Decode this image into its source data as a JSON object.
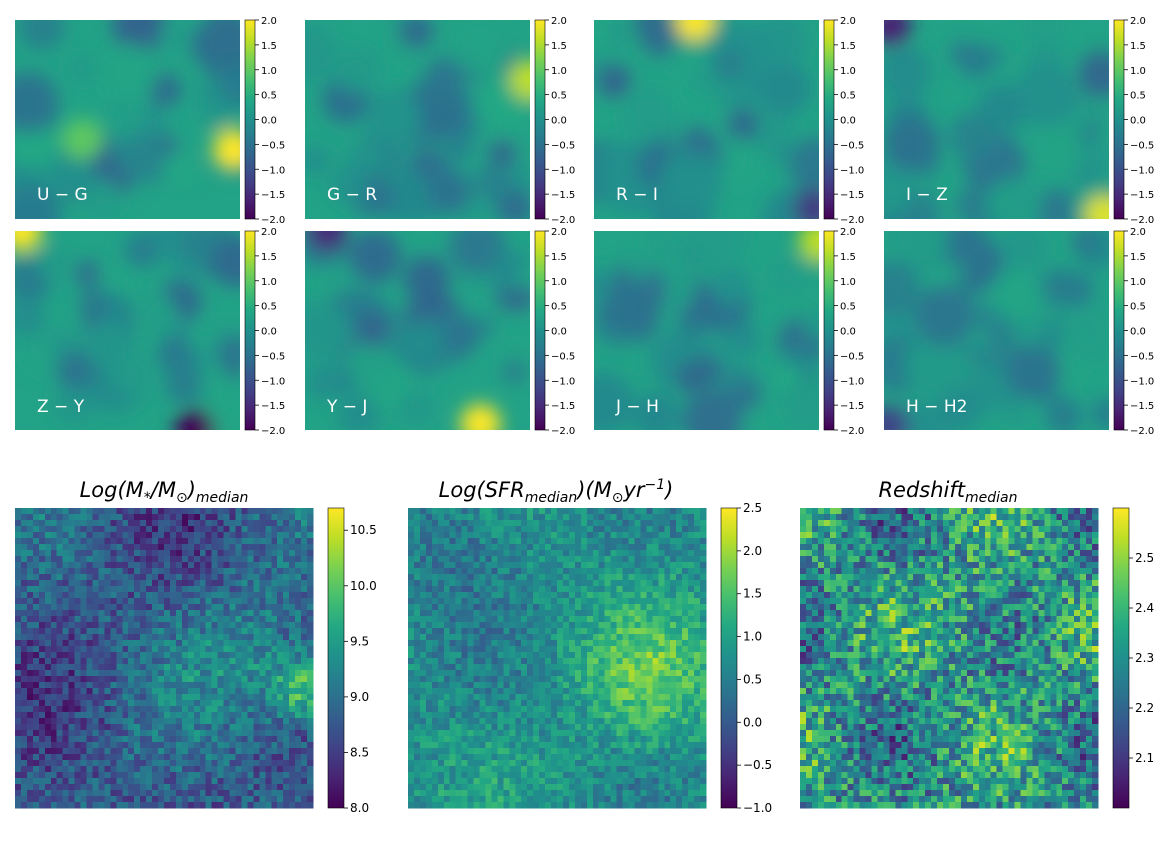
{
  "chart_data": [
    {
      "type": "heatmap",
      "title": "U − G",
      "colormap": "viridis",
      "zlim": [
        -2.0,
        2.0
      ],
      "colorbar_ticks": [
        "2.0",
        "1.5",
        "1.0",
        "0.5",
        "0.0",
        "−0.5",
        "−1.0",
        "−1.5",
        "−2.0"
      ],
      "hotspots": [
        {
          "x": 0.97,
          "y": 0.65,
          "value": 2.0
        },
        {
          "x": 0.3,
          "y": 0.6,
          "value": 1.0
        }
      ]
    },
    {
      "type": "heatmap",
      "title": "G − R",
      "colormap": "viridis",
      "zlim": [
        -2.0,
        2.0
      ],
      "colorbar_ticks": [
        "2.0",
        "1.5",
        "1.0",
        "0.5",
        "0.0",
        "−0.5",
        "−1.0",
        "−1.5",
        "−2.0"
      ],
      "hotspots": [
        {
          "x": 1.0,
          "y": 0.3,
          "value": 1.6
        }
      ]
    },
    {
      "type": "heatmap",
      "title": "R − I",
      "colormap": "viridis",
      "zlim": [
        -2.0,
        2.0
      ],
      "colorbar_ticks": [
        "2.0",
        "1.5",
        "1.0",
        "0.5",
        "0.0",
        "−0.5",
        "−1.0",
        "−1.5",
        "−2.0"
      ],
      "hotspots": [
        {
          "x": 0.45,
          "y": 0.0,
          "value": 2.0
        },
        {
          "x": 0.98,
          "y": 0.95,
          "value": -1.3
        }
      ]
    },
    {
      "type": "heatmap",
      "title": "I − Z",
      "colormap": "viridis",
      "zlim": [
        -2.0,
        2.0
      ],
      "colorbar_ticks": [
        "2.0",
        "1.5",
        "1.0",
        "0.5",
        "0.0",
        "−0.5",
        "−1.0",
        "−1.5",
        "−2.0"
      ],
      "hotspots": [
        {
          "x": 0.03,
          "y": 0.03,
          "value": -1.6
        },
        {
          "x": 0.98,
          "y": 0.98,
          "value": 1.8
        }
      ]
    },
    {
      "type": "heatmap",
      "title": "Z − Y",
      "colormap": "viridis",
      "zlim": [
        -2.0,
        2.0
      ],
      "colorbar_ticks": [
        "2.0",
        "1.5",
        "1.0",
        "0.5",
        "0.0",
        "−0.5",
        "−1.0",
        "−1.5",
        "−2.0"
      ],
      "hotspots": [
        {
          "x": 0.03,
          "y": 0.0,
          "value": 2.0
        },
        {
          "x": 0.8,
          "y": 1.0,
          "value": -2.0
        }
      ]
    },
    {
      "type": "heatmap",
      "title": "Y − J",
      "colormap": "viridis",
      "zlim": [
        -2.0,
        2.0
      ],
      "colorbar_ticks": [
        "2.0",
        "1.5",
        "1.0",
        "0.5",
        "0.0",
        "−0.5",
        "−1.0",
        "−1.5",
        "−2.0"
      ],
      "hotspots": [
        {
          "x": 0.78,
          "y": 0.97,
          "value": 2.0
        },
        {
          "x": 0.1,
          "y": 0.0,
          "value": -1.5
        }
      ]
    },
    {
      "type": "heatmap",
      "title": "J − H",
      "colormap": "viridis",
      "zlim": [
        -2.0,
        2.0
      ],
      "colorbar_ticks": [
        "2.0",
        "1.5",
        "1.0",
        "0.5",
        "0.0",
        "−0.5",
        "−1.0",
        "−1.5",
        "−2.0"
      ],
      "hotspots": [
        {
          "x": 1.0,
          "y": 0.05,
          "value": 1.6
        }
      ]
    },
    {
      "type": "heatmap",
      "title": "H − H2",
      "colormap": "viridis",
      "zlim": [
        -2.0,
        2.0
      ],
      "colorbar_ticks": [
        "2.0",
        "1.5",
        "1.0",
        "0.5",
        "0.0",
        "−0.5",
        "−1.0",
        "−1.5",
        "−2.0"
      ],
      "hotspots": [
        {
          "x": 0.02,
          "y": 0.98,
          "value": -1.2
        }
      ]
    },
    {
      "type": "heatmap",
      "title": "Log(M*/M⊙)median",
      "title_parts": {
        "base": "Log(M",
        "sub1": "*",
        "mid": "/M",
        "sub2": "⊙",
        "close": ")",
        "sub3": "median"
      },
      "colormap": "viridis",
      "zlim": [
        8.0,
        10.7
      ],
      "grid": [
        50,
        50
      ],
      "colorbar_ticks": [
        "10.5",
        "10.0",
        "9.5",
        "9.0",
        "8.5",
        "8.0"
      ],
      "colorbar_tick_values": [
        10.5,
        10.0,
        9.5,
        9.0,
        8.5,
        8.0
      ]
    },
    {
      "type": "heatmap",
      "title": "Log(SFRmedian)(M⊙yr−1)",
      "title_parts": {
        "base": "Log(SFR",
        "sub1": "median",
        "mid": ")(M",
        "sub2": "⊙",
        "tail": "yr",
        "sup": "−1",
        "close": ")"
      },
      "colormap": "viridis",
      "zlim": [
        -1.0,
        2.5
      ],
      "grid": [
        50,
        50
      ],
      "colorbar_ticks": [
        "2.5",
        "2.0",
        "1.5",
        "1.0",
        "0.5",
        "0.0",
        "−0.5",
        "−1.0"
      ],
      "colorbar_tick_values": [
        2.5,
        2.0,
        1.5,
        1.0,
        0.5,
        0.0,
        -0.5,
        -1.0
      ]
    },
    {
      "type": "heatmap",
      "title": "Redshiftmedian",
      "title_parts": {
        "base": "Redshift",
        "sub1": "median"
      },
      "colormap": "viridis",
      "zlim": [
        2.0,
        2.6
      ],
      "grid": [
        50,
        50
      ],
      "colorbar_ticks": [
        "2.5",
        "2.4",
        "2.3",
        "2.2",
        "2.1"
      ],
      "colorbar_tick_values": [
        2.5,
        2.4,
        2.3,
        2.2,
        2.1
      ]
    }
  ],
  "colors": {
    "viridis_low": "#440154",
    "viridis_mid": "#21918c",
    "viridis_high": "#fde725"
  }
}
